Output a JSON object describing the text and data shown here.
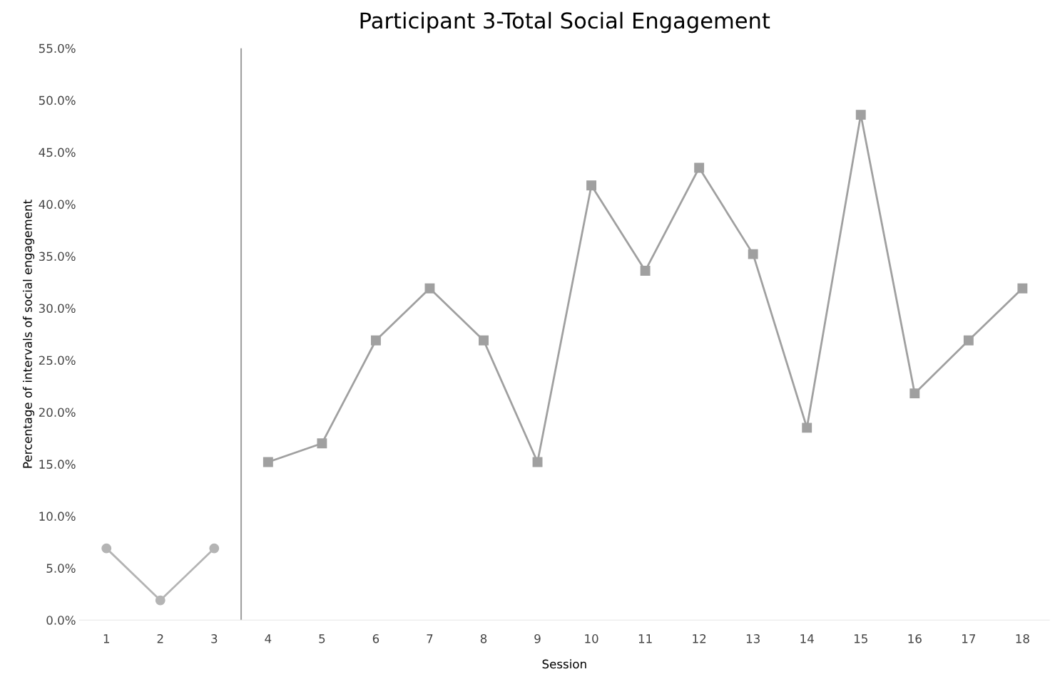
{
  "chart_data": {
    "type": "line",
    "title": "Participant 3-Total Social Engagement",
    "xlabel": "Session",
    "ylabel": "Percentage of intervals of social engagement",
    "series": [
      {
        "color": "#b4b4b4",
        "marker": "circle",
        "x": [
          1,
          2,
          3
        ],
        "values": [
          6.9,
          1.9,
          6.9
        ]
      },
      {
        "color": "#a0a0a0",
        "marker": "square",
        "x": [
          4,
          5,
          6,
          7,
          8,
          9,
          10,
          11,
          12,
          13,
          14,
          15,
          16,
          17,
          18
        ],
        "values": [
          15.2,
          17.0,
          26.9,
          31.9,
          26.9,
          15.2,
          41.8,
          33.6,
          43.5,
          35.2,
          18.5,
          48.6,
          21.8,
          26.9,
          31.9
        ]
      }
    ],
    "xlim": [
      0.5,
      18.5
    ],
    "xticks": [
      1,
      2,
      3,
      4,
      5,
      6,
      7,
      8,
      9,
      10,
      11,
      12,
      13,
      14,
      15,
      16,
      17,
      18
    ],
    "ylim": [
      0,
      55
    ],
    "yticks": [
      {
        "value": 0,
        "label": "0.0%"
      },
      {
        "value": 5,
        "label": "5.0%"
      },
      {
        "value": 10,
        "label": "10.0%"
      },
      {
        "value": 15,
        "label": "15.0%"
      },
      {
        "value": 20,
        "label": "20.0%"
      },
      {
        "value": 25,
        "label": "25.0%"
      },
      {
        "value": 30,
        "label": "30.0%"
      },
      {
        "value": 35,
        "label": "35.0%"
      },
      {
        "value": 40,
        "label": "40.0%"
      },
      {
        "value": 45,
        "label": "45.0%"
      },
      {
        "value": 50,
        "label": "50.0%"
      },
      {
        "value": 55,
        "label": "55.0%"
      }
    ],
    "ref_lines": [
      {
        "axis": "x",
        "value": 3.5,
        "color": "#a0a0a0"
      }
    ],
    "grid": false,
    "legend": false
  }
}
